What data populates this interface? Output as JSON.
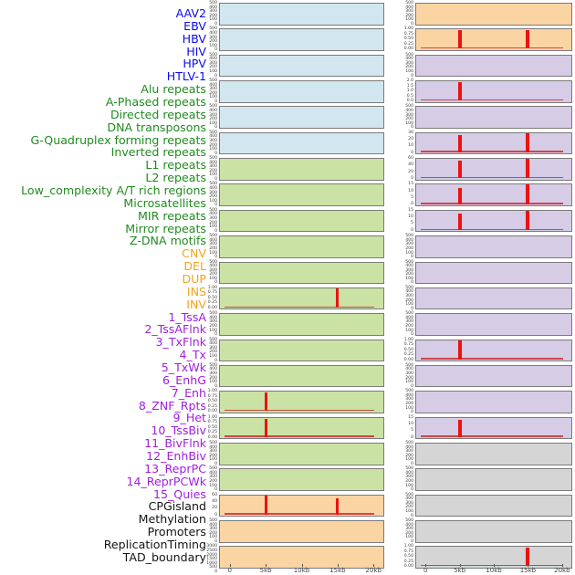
{
  "figure": {
    "x_axis": {
      "tick_labels": [
        "0",
        "5kb",
        "10kb",
        "15kb",
        "20kb"
      ],
      "tick_positions_kb": [
        0,
        5,
        10,
        15,
        20
      ],
      "domain_kb": [
        0,
        20
      ]
    },
    "colors": {
      "label_virus": "#0B0BEF",
      "label_repeat": "#1F8B1F",
      "label_sv": "#F0A41E",
      "label_chromhmm": "#A020E0",
      "label_other": "#141414",
      "bg_virus": "#D2E6EF",
      "bg_repeat": "#CBE2A5",
      "bg_sv": "#FBD4A3",
      "bg_chromhmm": "#D6CCE6",
      "bg_other": "#D5D5D5",
      "spike": "#EC1212",
      "baseline": "#CD2D2D",
      "panel_border": "#7A7A7A",
      "ytick_text": "#3A3A3A",
      "xtick_text": "#444444"
    },
    "chart_data": [
      {
        "name": "AAV2",
        "group": "virus",
        "column": "left",
        "row": 1,
        "type": "line",
        "yticks": [
          "500",
          "400",
          "300",
          "200",
          "100",
          "0"
        ],
        "spikes": [],
        "baseline": false
      },
      {
        "name": "EBV",
        "group": "virus",
        "column": "left",
        "row": 2,
        "type": "line",
        "yticks": [
          "500",
          "400",
          "300",
          "200",
          "100",
          "0"
        ],
        "spikes": [],
        "baseline": false
      },
      {
        "name": "HBV",
        "group": "virus",
        "column": "left",
        "row": 3,
        "type": "line",
        "yticks": [
          "500",
          "400",
          "300",
          "200",
          "100",
          "0"
        ],
        "spikes": [],
        "baseline": false
      },
      {
        "name": "HIV",
        "group": "virus",
        "column": "left",
        "row": 4,
        "type": "line",
        "yticks": [
          "500",
          "400",
          "300",
          "200",
          "100",
          "0"
        ],
        "spikes": [],
        "baseline": false
      },
      {
        "name": "HPV",
        "group": "virus",
        "column": "left",
        "row": 5,
        "type": "line",
        "yticks": [
          "500",
          "400",
          "300",
          "200",
          "100",
          "0"
        ],
        "spikes": [],
        "baseline": false
      },
      {
        "name": "HTLV-1",
        "group": "virus",
        "column": "left",
        "row": 6,
        "type": "line",
        "yticks": [
          "500",
          "400",
          "300",
          "200",
          "100",
          "0"
        ],
        "spikes": [],
        "baseline": false
      },
      {
        "name": "Alu repeats",
        "group": "repeat",
        "column": "left",
        "row": 7,
        "type": "line",
        "yticks": [
          "500",
          "400",
          "300",
          "200",
          "100",
          "0"
        ],
        "spikes": [],
        "baseline": false
      },
      {
        "name": "A-Phased repeats",
        "group": "repeat",
        "column": "left",
        "row": 8,
        "type": "line",
        "yticks": [
          "500",
          "400",
          "300",
          "200",
          "100",
          "0"
        ],
        "spikes": [],
        "baseline": false
      },
      {
        "name": "Directed repeats",
        "group": "repeat",
        "column": "left",
        "row": 9,
        "type": "line",
        "yticks": [
          "500",
          "400",
          "300",
          "200",
          "100",
          "0"
        ],
        "spikes": [],
        "baseline": false
      },
      {
        "name": "DNA transposons",
        "group": "repeat",
        "column": "left",
        "row": 10,
        "type": "line",
        "yticks": [
          "500",
          "400",
          "300",
          "200",
          "100",
          "0"
        ],
        "spikes": [],
        "baseline": false
      },
      {
        "name": "G-Quadruplex forming repeats",
        "group": "repeat",
        "column": "left",
        "row": 11,
        "type": "line",
        "yticks": [
          "500",
          "400",
          "300",
          "200",
          "100",
          "0"
        ],
        "spikes": [],
        "baseline": false
      },
      {
        "name": "Inverted repeats",
        "group": "repeat",
        "column": "left",
        "row": 12,
        "type": "line",
        "yticks": [
          "1.00",
          "0.75",
          "0.50",
          "0.25",
          "0.00"
        ],
        "spikes": [
          {
            "x_kb": 15,
            "value": 1.0
          }
        ],
        "baseline": true
      },
      {
        "name": "L1 repeats",
        "group": "repeat",
        "column": "left",
        "row": 13,
        "type": "line",
        "yticks": [
          "500",
          "400",
          "300",
          "200",
          "100",
          "0"
        ],
        "spikes": [],
        "baseline": false
      },
      {
        "name": "L2 repeats",
        "group": "repeat",
        "column": "left",
        "row": 14,
        "type": "line",
        "yticks": [
          "500",
          "400",
          "300",
          "200",
          "100",
          "0"
        ],
        "spikes": [],
        "baseline": false
      },
      {
        "name": "Low_complexity A/T rich regions",
        "group": "repeat",
        "column": "left",
        "row": 15,
        "type": "line",
        "yticks": [
          "500",
          "400",
          "300",
          "200",
          "100",
          "0"
        ],
        "spikes": [],
        "baseline": false
      },
      {
        "name": "Microsatellites",
        "group": "repeat",
        "column": "left",
        "row": 16,
        "type": "line",
        "yticks": [
          "1.00",
          "0.75",
          "0.50",
          "0.25",
          "0.00"
        ],
        "spikes": [
          {
            "x_kb": 5,
            "value": 1.0
          }
        ],
        "baseline": true
      },
      {
        "name": "MIR repeats",
        "group": "repeat",
        "column": "left",
        "row": 17,
        "type": "line",
        "yticks": [
          "1.00",
          "0.75",
          "0.50",
          "0.25",
          "0.00"
        ],
        "spikes": [
          {
            "x_kb": 5,
            "value": 0.95
          }
        ],
        "baseline": true
      },
      {
        "name": "Mirror repeats",
        "group": "repeat",
        "column": "left",
        "row": 18,
        "type": "line",
        "yticks": [
          "500",
          "400",
          "300",
          "200",
          "100",
          "0"
        ],
        "spikes": [],
        "baseline": false
      },
      {
        "name": "Z-DNA motifs",
        "group": "repeat",
        "column": "left",
        "row": 19,
        "type": "line",
        "yticks": [
          "500",
          "400",
          "300",
          "200",
          "100",
          "0"
        ],
        "spikes": [],
        "baseline": false
      },
      {
        "name": "CNV",
        "group": "sv",
        "column": "left",
        "row": 20,
        "type": "line",
        "yticks": [
          "60",
          "40",
          "20",
          "0"
        ],
        "spikes": [
          {
            "x_kb": 5,
            "value": 62
          },
          {
            "x_kb": 15,
            "value": 53
          }
        ],
        "baseline": true
      },
      {
        "name": "DEL",
        "group": "sv",
        "column": "left",
        "row": 21,
        "type": "line",
        "yticks": [
          "500",
          "400",
          "300",
          "200",
          "100",
          "0"
        ],
        "spikes": [],
        "baseline": false
      },
      {
        "name": "DUP",
        "group": "sv",
        "column": "left",
        "row": 22,
        "type": "line",
        "yticks": [
          "3000",
          "2500",
          "2000",
          "1500",
          "1000",
          "500",
          "0"
        ],
        "spikes": [],
        "baseline": false
      },
      {
        "name": "INS",
        "group": "sv",
        "column": "right",
        "row": 1,
        "type": "line",
        "yticks": [
          "500",
          "400",
          "300",
          "200",
          "100",
          "0"
        ],
        "spikes": [],
        "baseline": false
      },
      {
        "name": "INV",
        "group": "sv",
        "column": "right",
        "row": 2,
        "type": "line",
        "yticks": [
          "1.00",
          "0.75",
          "0.50",
          "0.25",
          "0.00"
        ],
        "spikes": [
          {
            "x_kb": 5,
            "value": 1.0
          },
          {
            "x_kb": 15,
            "value": 1.0
          }
        ],
        "baseline": true
      },
      {
        "name": "1_TssA",
        "group": "chromhmm",
        "column": "right",
        "row": 3,
        "type": "line",
        "yticks": [
          "500",
          "400",
          "300",
          "200",
          "100",
          "0"
        ],
        "spikes": [],
        "baseline": false
      },
      {
        "name": "2_TssAFlnk",
        "group": "chromhmm",
        "column": "right",
        "row": 4,
        "type": "line",
        "yticks": [
          "2.0",
          "1.5",
          "1.0",
          "0.5",
          "0.0"
        ],
        "spikes": [
          {
            "x_kb": 5,
            "value": 2.0
          }
        ],
        "baseline": true
      },
      {
        "name": "3_TxFlnk",
        "group": "chromhmm",
        "column": "right",
        "row": 5,
        "type": "line",
        "yticks": [
          "500",
          "400",
          "300",
          "200",
          "100",
          "0"
        ],
        "spikes": [],
        "baseline": false
      },
      {
        "name": "4_Tx",
        "group": "chromhmm",
        "column": "right",
        "row": 6,
        "type": "line",
        "yticks": [
          "30",
          "20",
          "10",
          "0"
        ],
        "spikes": [
          {
            "x_kb": 5,
            "value": 27
          },
          {
            "x_kb": 15,
            "value": 31
          }
        ],
        "baseline": true
      },
      {
        "name": "5_TxWk",
        "group": "chromhmm",
        "column": "right",
        "row": 7,
        "type": "line",
        "yticks": [
          "60",
          "40",
          "20",
          "0"
        ],
        "spikes": [
          {
            "x_kb": 5,
            "value": 55
          },
          {
            "x_kb": 15,
            "value": 65
          }
        ],
        "baseline": true
      },
      {
        "name": "6_EnhG",
        "group": "chromhmm",
        "column": "right",
        "row": 8,
        "type": "line",
        "yticks": [
          "15",
          "10",
          "5",
          "0"
        ],
        "spikes": [
          {
            "x_kb": 5,
            "value": 13
          },
          {
            "x_kb": 15,
            "value": 16
          }
        ],
        "baseline": true
      },
      {
        "name": "7_Enh",
        "group": "chromhmm",
        "column": "right",
        "row": 9,
        "type": "line",
        "yticks": [
          "15",
          "10",
          "5",
          "0"
        ],
        "spikes": [
          {
            "x_kb": 5,
            "value": 13
          },
          {
            "x_kb": 15,
            "value": 15
          }
        ],
        "baseline": true
      },
      {
        "name": "8_ZNF_Rpts",
        "group": "chromhmm",
        "column": "right",
        "row": 10,
        "type": "line",
        "yticks": [
          "500",
          "400",
          "300",
          "200",
          "100",
          "0"
        ],
        "spikes": [],
        "baseline": false
      },
      {
        "name": "9_Het",
        "group": "chromhmm",
        "column": "right",
        "row": 11,
        "type": "line",
        "yticks": [
          "500",
          "400",
          "300",
          "200",
          "100",
          "0"
        ],
        "spikes": [],
        "baseline": false
      },
      {
        "name": "10_TssBiv",
        "group": "chromhmm",
        "column": "right",
        "row": 12,
        "type": "line",
        "yticks": [
          "500",
          "400",
          "300",
          "200",
          "100",
          "0"
        ],
        "spikes": [],
        "baseline": false
      },
      {
        "name": "11_BivFlnk",
        "group": "chromhmm",
        "column": "right",
        "row": 13,
        "type": "line",
        "yticks": [
          "500",
          "400",
          "300",
          "200",
          "100",
          "0"
        ],
        "spikes": [],
        "baseline": false
      },
      {
        "name": "12_EnhBiv",
        "group": "chromhmm",
        "column": "right",
        "row": 14,
        "type": "line",
        "yticks": [
          "1.00",
          "0.75",
          "0.50",
          "0.25",
          "0.00"
        ],
        "spikes": [
          {
            "x_kb": 5,
            "value": 1.0
          }
        ],
        "baseline": true
      },
      {
        "name": "13_ReprPC",
        "group": "chromhmm",
        "column": "right",
        "row": 15,
        "type": "line",
        "yticks": [
          "500",
          "400",
          "300",
          "200",
          "100",
          "0"
        ],
        "spikes": [],
        "baseline": false
      },
      {
        "name": "14_ReprPCWk",
        "group": "chromhmm",
        "column": "right",
        "row": 16,
        "type": "line",
        "yticks": [
          "500",
          "400",
          "300",
          "200",
          "100",
          "0"
        ],
        "spikes": [],
        "baseline": false
      },
      {
        "name": "15_Quies",
        "group": "chromhmm",
        "column": "right",
        "row": 17,
        "type": "line",
        "yticks": [
          "15",
          "10",
          "5",
          "0"
        ],
        "spikes": [
          {
            "x_kb": 5,
            "value": 14
          }
        ],
        "baseline": true
      },
      {
        "name": "CPGisland",
        "group": "other",
        "column": "right",
        "row": 18,
        "type": "line",
        "yticks": [
          "500",
          "400",
          "300",
          "200",
          "100",
          "0"
        ],
        "spikes": [],
        "baseline": false
      },
      {
        "name": "Methylation",
        "group": "other",
        "column": "right",
        "row": 19,
        "type": "line",
        "yticks": [
          "500",
          "400",
          "300",
          "200",
          "100",
          "0"
        ],
        "spikes": [],
        "baseline": false
      },
      {
        "name": "Promoters",
        "group": "other",
        "column": "right",
        "row": 20,
        "type": "line",
        "yticks": [
          "500",
          "400",
          "300",
          "200",
          "100",
          "0"
        ],
        "spikes": [],
        "baseline": false
      },
      {
        "name": "ReplicationTiming",
        "group": "other",
        "column": "right",
        "row": 21,
        "type": "line",
        "yticks": [
          "500",
          "400",
          "300",
          "200",
          "100",
          "0"
        ],
        "spikes": [],
        "baseline": false
      },
      {
        "name": "TAD_boundary",
        "group": "other",
        "column": "right",
        "row": 22,
        "type": "line",
        "yticks": [
          "1.00",
          "0.75",
          "0.50",
          "0.25",
          "0.00"
        ],
        "spikes": [
          {
            "x_kb": 15,
            "value": 1.0
          }
        ],
        "baseline": true
      }
    ]
  }
}
